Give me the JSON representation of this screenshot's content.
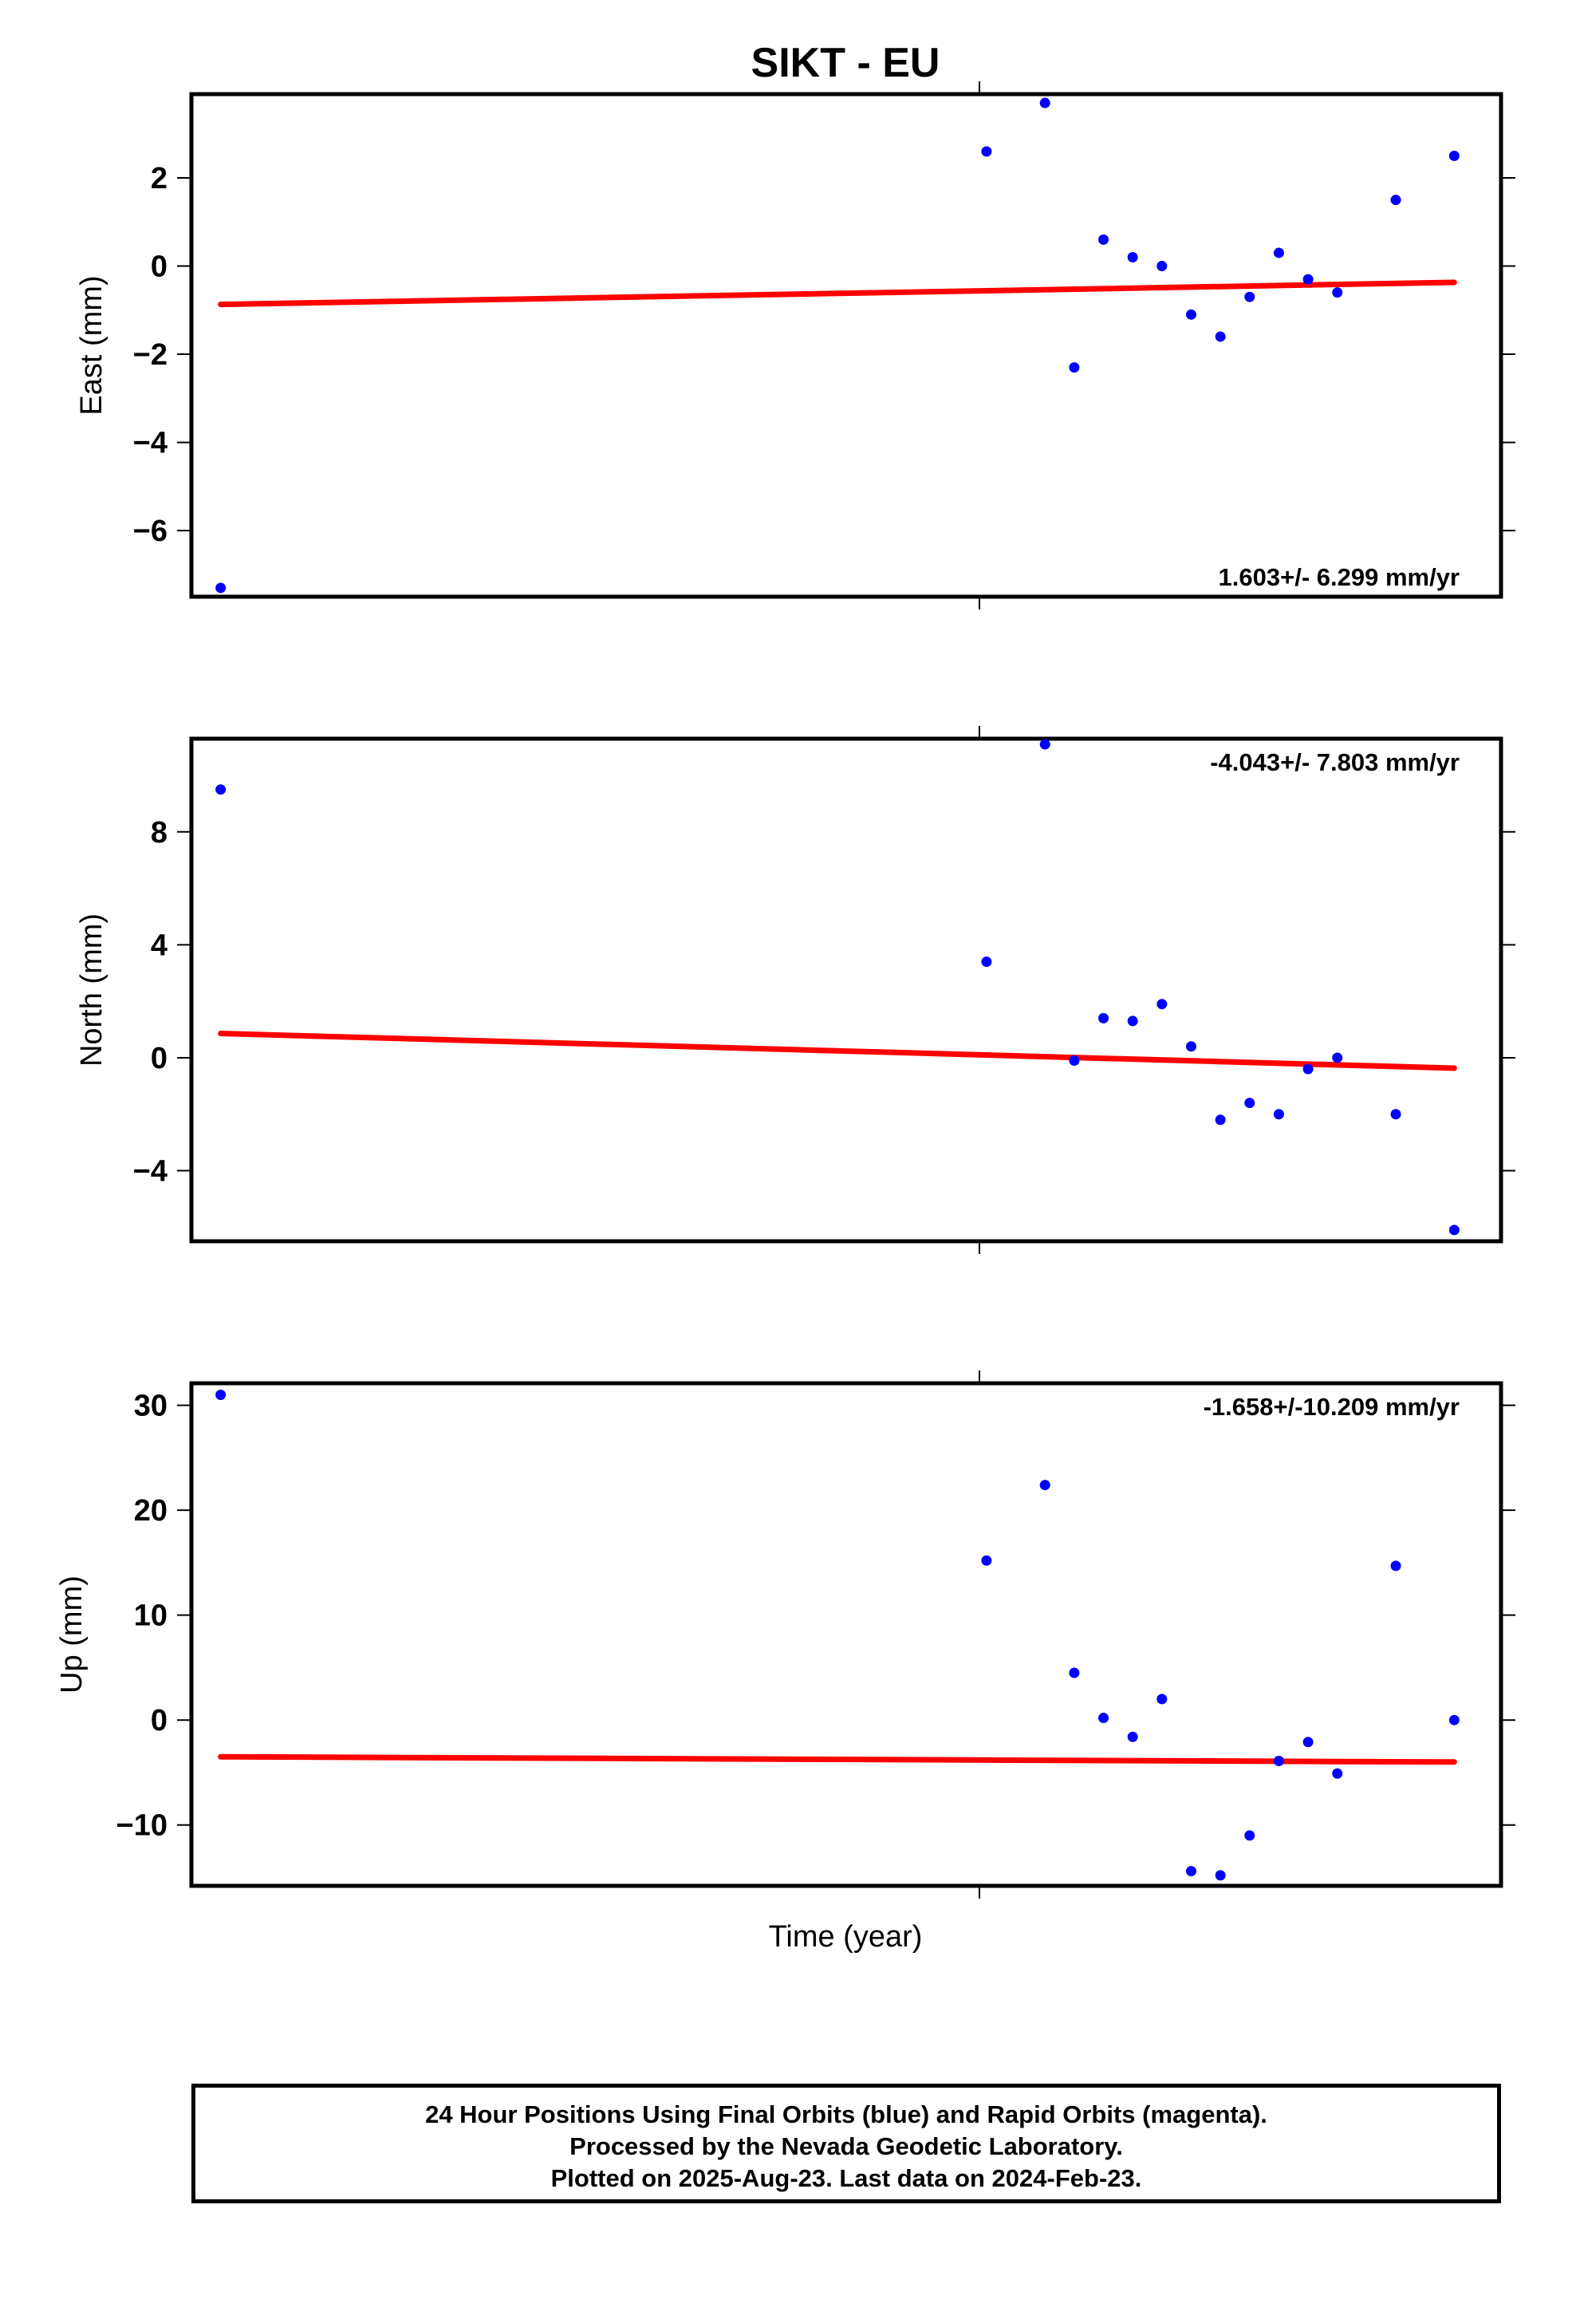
{
  "chart_data": {
    "type": "scatter",
    "title": "SIKT - EU",
    "xlabel": "Time (year)",
    "xlim": [
      -1,
      43.8
    ],
    "panels": [
      {
        "name": "east",
        "ylabel": "East (mm)",
        "ylim": [
          -7.5,
          3.9
        ],
        "yticks": [
          2,
          0,
          -2,
          -4,
          -6
        ],
        "ytick_labels": [
          "2",
          "0",
          "−2",
          "−4",
          "−6"
        ],
        "rate_text": "1.603+/- 6.299 mm/yr",
        "rate_pos": "bottom-right",
        "series": {
          "name": "Final Orbits",
          "color": "#0000ff",
          "points": [
            [
              0,
              -7.3
            ],
            [
              26.2,
              2.6
            ],
            [
              28.2,
              3.7
            ],
            [
              29.2,
              -2.3
            ],
            [
              30.2,
              0.6
            ],
            [
              31.2,
              0.2
            ],
            [
              32.2,
              0.0
            ],
            [
              33.2,
              -1.1
            ],
            [
              34.2,
              -1.6
            ],
            [
              35.2,
              -0.7
            ],
            [
              36.2,
              0.3
            ],
            [
              37.2,
              -0.3
            ],
            [
              38.2,
              -0.6
            ],
            [
              40.2,
              1.5
            ],
            [
              42.2,
              2.5
            ]
          ]
        },
        "trend": {
          "color": "#ff0000",
          "x": [
            0,
            42.2
          ],
          "y": [
            -0.87,
            -0.37
          ]
        }
      },
      {
        "name": "north",
        "ylabel": "North (mm)",
        "ylim": [
          -6.5,
          11.3
        ],
        "yticks": [
          8,
          4,
          0,
          -4
        ],
        "ytick_labels": [
          "8",
          "4",
          "0",
          "−4"
        ],
        "rate_text": "-4.043+/- 7.803 mm/yr",
        "rate_pos": "top-right",
        "series": {
          "name": "Final Orbits",
          "color": "#0000ff",
          "points": [
            [
              0,
              9.5
            ],
            [
              26.2,
              3.4
            ],
            [
              28.2,
              11.1
            ],
            [
              29.2,
              -0.1
            ],
            [
              30.2,
              1.4
            ],
            [
              31.2,
              1.3
            ],
            [
              32.2,
              1.9
            ],
            [
              33.2,
              0.4
            ],
            [
              34.2,
              -2.2
            ],
            [
              35.2,
              -1.6
            ],
            [
              36.2,
              -2.0
            ],
            [
              37.2,
              -0.4
            ],
            [
              38.2,
              0.0
            ],
            [
              40.2,
              -2.0
            ],
            [
              42.2,
              -6.1
            ]
          ]
        },
        "trend": {
          "color": "#ff0000",
          "x": [
            0,
            42.2
          ],
          "y": [
            0.86,
            -0.37
          ]
        }
      },
      {
        "name": "up",
        "ylabel": "Up (mm)",
        "ylim": [
          -15.8,
          32.1
        ],
        "yticks": [
          30,
          20,
          10,
          0,
          -10
        ],
        "ytick_labels": [
          "30",
          "20",
          "10",
          "0",
          "−10"
        ],
        "rate_text": "-1.658+/-10.209 mm/yr",
        "rate_pos": "top-right",
        "series": {
          "name": "Final Orbits",
          "color": "#0000ff",
          "points": [
            [
              0,
              31.0
            ],
            [
              26.2,
              15.2
            ],
            [
              28.2,
              22.4
            ],
            [
              29.2,
              4.5
            ],
            [
              30.2,
              0.2
            ],
            [
              31.2,
              -1.6
            ],
            [
              32.2,
              2.0
            ],
            [
              33.2,
              -14.4
            ],
            [
              34.2,
              -14.8
            ],
            [
              35.2,
              -11.0
            ],
            [
              36.2,
              -3.9
            ],
            [
              37.2,
              -2.1
            ],
            [
              38.2,
              -5.1
            ],
            [
              40.2,
              14.7
            ],
            [
              42.2,
              0.0
            ]
          ]
        },
        "trend": {
          "color": "#ff0000",
          "x": [
            0,
            42.2
          ],
          "y": [
            -3.5,
            -4.0
          ]
        }
      }
    ],
    "grid": false
  },
  "caption": {
    "line1": "24 Hour Positions Using Final Orbits (blue) and Rapid Orbits (magenta).",
    "line2": "Processed by the Nevada Geodetic Laboratory.",
    "line3": "Plotted on 2025-Aug-23. Last data on 2024-Feb-23."
  }
}
